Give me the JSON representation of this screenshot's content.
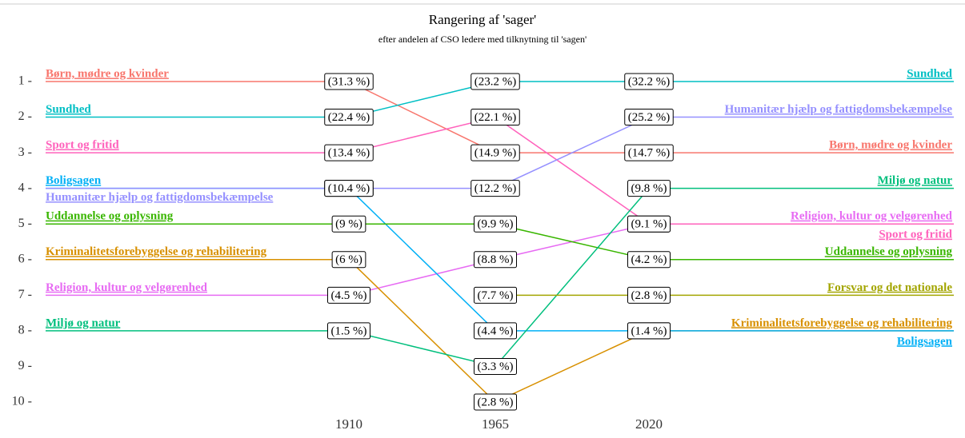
{
  "chart_data": {
    "type": "bump",
    "title": "Rangering af 'sager'",
    "subtitle": "efter andelen af CSO ledere med tilknytning til 'sagen'",
    "categories": [
      "1910",
      "1965",
      "2020"
    ],
    "ylim": [
      10.5,
      0.5
    ],
    "yticks": [
      {
        "value": 1,
        "label": "1 -"
      },
      {
        "value": 2,
        "label": "2 -"
      },
      {
        "value": 3,
        "label": "3 -"
      },
      {
        "value": 4,
        "label": "4 -"
      },
      {
        "value": 5,
        "label": "5 -"
      },
      {
        "value": 6,
        "label": "6 -"
      },
      {
        "value": 7,
        "label": "7 -"
      },
      {
        "value": 8,
        "label": "8 -"
      },
      {
        "value": 9,
        "label": "9 -"
      },
      {
        "value": 10,
        "label": "10 -"
      }
    ],
    "series": [
      {
        "name": "Børn, mødre og kvinder",
        "color": "#f8766d",
        "values": [
          1,
          3,
          3
        ],
        "shares": [
          "(31.3 %)",
          "(14.9 %)",
          "(14.7 %)"
        ]
      },
      {
        "name": "Sundhed",
        "color": "#00bfc4",
        "values": [
          2,
          1,
          1
        ],
        "shares": [
          "(22.4 %)",
          "(23.2 %)",
          "(32.2 %)"
        ]
      },
      {
        "name": "Religion, kultur og velgørenhed",
        "color": "#e76bf3",
        "values": [
          7,
          6,
          5
        ],
        "shares": [
          "(4.5 %)",
          "(8.8 %)",
          "(9.1 %)"
        ]
      },
      {
        "name": "Sport og fritid",
        "color": "#ff62bc",
        "values": [
          3,
          2,
          5
        ],
        "shares": [
          "(13.4 %)",
          "(22.1 %)",
          "(9.1 %)"
        ]
      },
      {
        "name": "Kriminalitetsforebyggelse og rehabilitering",
        "color": "#d89000",
        "values": [
          6,
          10,
          8
        ],
        "shares": [
          "(6 %)",
          "(2.8 %)",
          "(1.4 %)"
        ]
      },
      {
        "name": "Boligsagen",
        "color": "#00b0f6",
        "values": [
          4,
          8,
          8
        ],
        "shares": [
          "(10.4 %)",
          "(4.4 %)",
          "(1.4 %)"
        ]
      },
      {
        "name": "Humanitær hjælp og fattigdomsbekæmpelse",
        "color": "#9590ff",
        "values": [
          4,
          4,
          2
        ],
        "shares": [
          "(10.4 %)",
          "(12.2 %)",
          "(25.2 %)"
        ]
      },
      {
        "name": "Uddannelse og oplysning",
        "color": "#39b600",
        "values": [
          5,
          5,
          6
        ],
        "shares": [
          "(9 %)",
          "(9.9 %)",
          "(4.2 %)"
        ]
      },
      {
        "name": "Miljø og natur",
        "color": "#00bf7d",
        "values": [
          8,
          9,
          4
        ],
        "shares": [
          "(1.5 %)",
          "(3.3 %)",
          "(9.8 %)"
        ]
      },
      {
        "name": "Forsvar og det nationale",
        "color": "#a3a500",
        "values": [
          null,
          7,
          7
        ],
        "shares": [
          null,
          "(7.7 %)",
          "(2.8 %)"
        ]
      }
    ]
  }
}
